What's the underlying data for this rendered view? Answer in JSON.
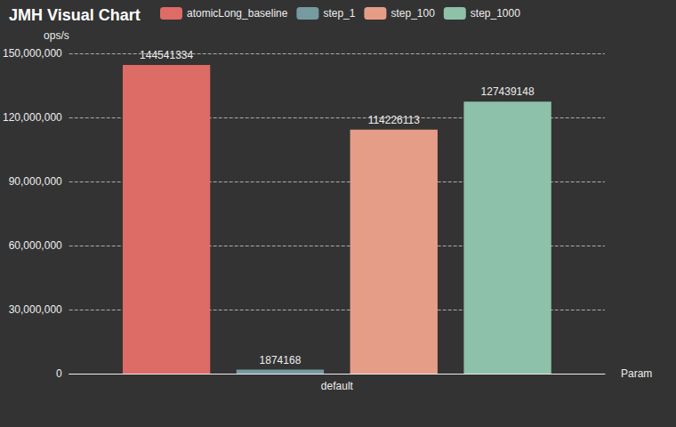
{
  "chart_data": {
    "type": "bar",
    "title": "JMH Visual Chart",
    "categories": [
      "default"
    ],
    "series": [
      {
        "name": "atomicLong_baseline",
        "color": "#dd6b66",
        "values": [
          144541334
        ]
      },
      {
        "name": "step_1",
        "color": "#759aa0",
        "values": [
          1874168
        ]
      },
      {
        "name": "step_100",
        "color": "#e69d87",
        "values": [
          114226113
        ]
      },
      {
        "name": "step_1000",
        "color": "#8dc1a9",
        "values": [
          127439148
        ]
      }
    ],
    "x_label": "Param",
    "y_label": "ops/s",
    "ylim": [
      0,
      150000000
    ],
    "yticks": [
      0,
      {
        "value": 30000000,
        "label": "30,000,000"
      },
      {
        "value": 60000000,
        "label": "60,000,000"
      },
      {
        "value": 90000000,
        "label": "90,000,000"
      },
      {
        "value": 120000000,
        "label": "120,000,000"
      },
      {
        "value": 150000000,
        "label": "150,000,000"
      }
    ],
    "grid": true,
    "data_labels": true,
    "legend": "top"
  }
}
